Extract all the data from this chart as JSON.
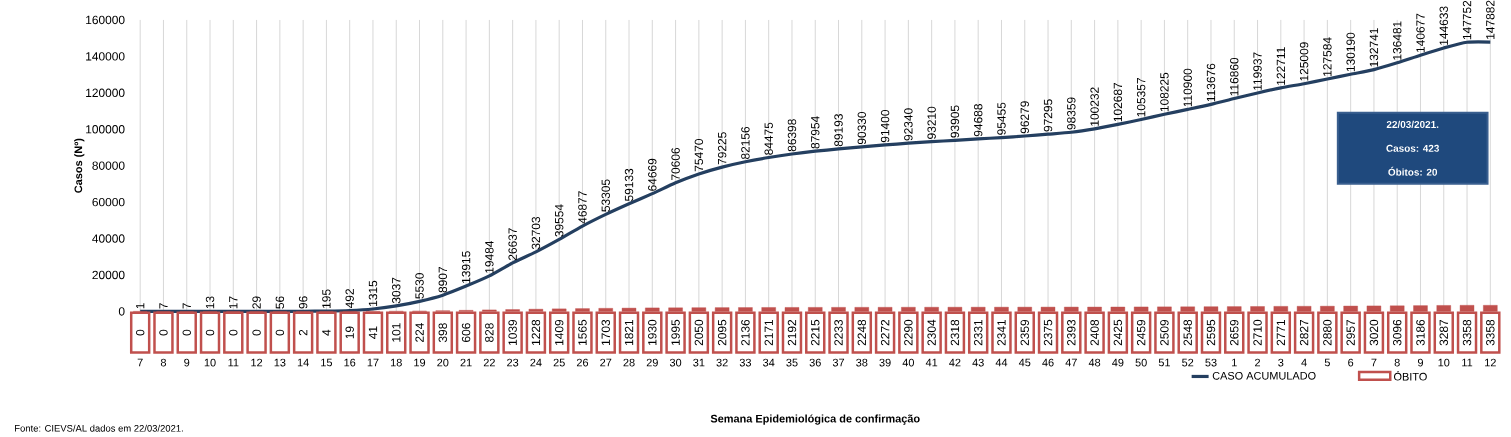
{
  "chart_data": {
    "type": "line",
    "xlabel": "Semana Epidemiológica de confirmação",
    "ylabel": "Casos (Nº)",
    "categories": [
      "7",
      "8",
      "9",
      "10",
      "11",
      "12",
      "13",
      "14",
      "15",
      "16",
      "17",
      "18",
      "19",
      "20",
      "21",
      "22",
      "23",
      "24",
      "25",
      "26",
      "27",
      "28",
      "29",
      "30",
      "31",
      "32",
      "33",
      "34",
      "35",
      "36",
      "37",
      "38",
      "39",
      "40",
      "41",
      "42",
      "43",
      "44",
      "45",
      "46",
      "47",
      "48",
      "49",
      "50",
      "51",
      "52",
      "53",
      "1",
      "2",
      "3",
      "4",
      "5",
      "6",
      "7",
      "8",
      "9",
      "10",
      "11",
      "12"
    ],
    "series": [
      {
        "name": "CASO ACUMULADO",
        "color": "#243f60",
        "values": [
          1,
          7,
          7,
          13,
          17,
          29,
          56,
          96,
          195,
          492,
          1315,
          3037,
          5530,
          8907,
          13915,
          19484,
          26637,
          32703,
          39554,
          46877,
          53305,
          59133,
          64669,
          70606,
          75470,
          79225,
          82156,
          84475,
          86398,
          87954,
          89193,
          90330,
          91400,
          92340,
          93210,
          93905,
          94688,
          95455,
          96279,
          97295,
          98359,
          100232,
          102687,
          105357,
          108225,
          110900,
          113676,
          116860,
          119937,
          122711,
          125009,
          127584,
          130190,
          132741,
          136481,
          140677,
          144633,
          147752,
          147882
        ]
      },
      {
        "name": "ÓBITO",
        "type": "bar",
        "color": "#c0504d",
        "values": [
          0,
          0,
          0,
          0,
          0,
          0,
          0,
          2,
          4,
          19,
          41,
          101,
          224,
          398,
          606,
          828,
          1039,
          1228,
          1409,
          1565,
          1703,
          1821,
          1930,
          1995,
          2050,
          2095,
          2136,
          2171,
          2192,
          2215,
          2233,
          2248,
          2272,
          2290,
          2304,
          2318,
          2331,
          2341,
          2359,
          2375,
          2393,
          2408,
          2425,
          2459,
          2509,
          2548,
          2595,
          2659,
          2710,
          2771,
          2827,
          2880,
          2957,
          3020,
          3096,
          3186,
          3287,
          3358,
          3358
        ]
      }
    ],
    "ylim": [
      0,
      160000
    ],
    "yticks": [
      0,
      20000,
      40000,
      60000,
      80000,
      100000,
      120000,
      140000,
      160000
    ],
    "data_labels": true,
    "grid": "x",
    "legend": "bottom",
    "annotations": [
      "22/03/2021.",
      "Casos: 423",
      "Óbitos: 20",
      "Fonte: CIEVS/AL dados em 22/03/2021."
    ]
  }
}
